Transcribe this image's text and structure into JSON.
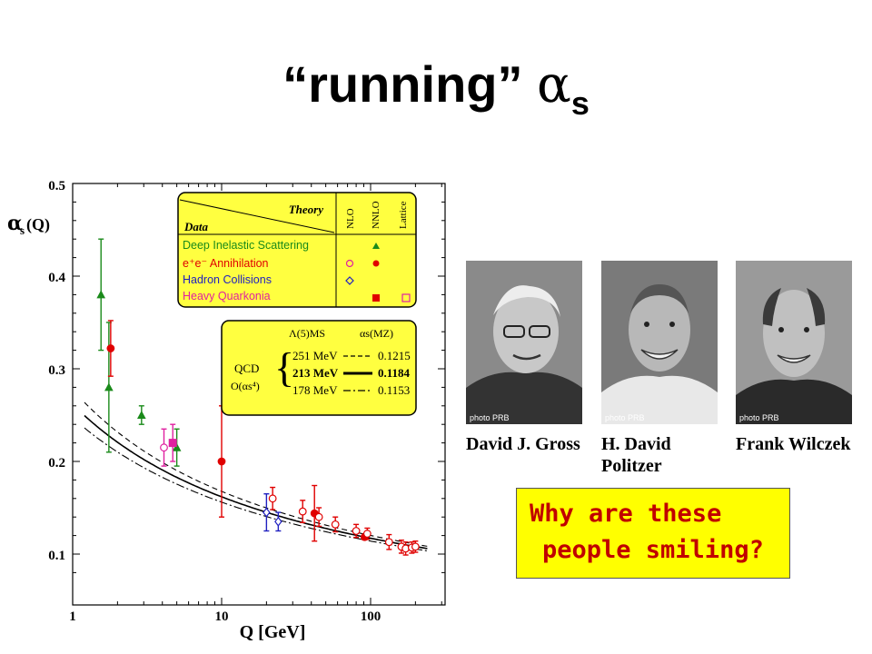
{
  "slide": {
    "title_text": "“running” ",
    "title_alpha": "α",
    "title_sub": "s"
  },
  "chart_data": {
    "type": "scatter",
    "title": "",
    "ylabel_main": "α",
    "ylabel_sub": "s",
    "ylabel_rest": "(Q)",
    "xlabel": "Q [GeV]",
    "xscale": "log",
    "xlim": [
      1,
      250
    ],
    "ylim": [
      0.07,
      0.5
    ],
    "x_ticks": [
      "1",
      "10",
      "100"
    ],
    "y_ticks": [
      "0.1",
      "0.2",
      "0.3",
      "0.4",
      "0.5"
    ],
    "legend_table": {
      "col_theory": "Theory",
      "col_data": "Data",
      "cols": [
        "NLO",
        "NNLO",
        "Lattice"
      ],
      "rows": [
        {
          "label": "Deep Inelastic Scattering",
          "color": "#1a8a1a"
        },
        {
          "label": "e⁺e⁻ Annihilation",
          "color": "#e00000"
        },
        {
          "label": "Hadron Collisions",
          "color": "#2020c0"
        },
        {
          "label": "Heavy Quarkonia",
          "color": "#e020a0"
        }
      ]
    },
    "qcd_box": {
      "header_lambda": "Λ(5)MS",
      "header_alpha": "αs(MZ)",
      "label1": "QCD",
      "label2": "O(αs⁴)",
      "rows": [
        {
          "lambda": "251 MeV",
          "alpha": "0.1215",
          "style": "dashed"
        },
        {
          "lambda": "213 MeV",
          "alpha": "0.1184",
          "style": "solid"
        },
        {
          "lambda": "178 MeV",
          "alpha": "0.1153",
          "style": "dashdot"
        }
      ]
    },
    "series": [
      {
        "name": "Deep Inelastic Scattering",
        "color": "#1a8a1a",
        "points": [
          {
            "x": 1.55,
            "y": 0.38,
            "err": 0.06,
            "m": "tri",
            "f": true
          },
          {
            "x": 1.75,
            "y": 0.28,
            "err": 0.07,
            "m": "tri",
            "f": true
          },
          {
            "x": 2.9,
            "y": 0.25,
            "err": 0.01,
            "m": "tri",
            "f": true
          },
          {
            "x": 5.0,
            "y": 0.215,
            "err": 0.02,
            "m": "tri",
            "f": true
          }
        ]
      },
      {
        "name": "e+e- Annihilation",
        "color": "#e00000",
        "points": [
          {
            "x": 1.8,
            "y": 0.322,
            "err": 0.03,
            "m": "circ",
            "f": true
          },
          {
            "x": 10.0,
            "y": 0.2,
            "err": 0.06,
            "m": "circ",
            "f": true
          },
          {
            "x": 42,
            "y": 0.144,
            "err": 0.03,
            "m": "circ",
            "f": true
          },
          {
            "x": 91.2,
            "y": 0.1184,
            "err": 0.003,
            "m": "circ",
            "f": true
          },
          {
            "x": 22,
            "y": 0.16,
            "err": 0.012,
            "m": "circ",
            "f": false
          },
          {
            "x": 35,
            "y": 0.146,
            "err": 0.012,
            "m": "circ",
            "f": false
          },
          {
            "x": 45,
            "y": 0.14,
            "err": 0.01,
            "m": "circ",
            "f": false
          },
          {
            "x": 58,
            "y": 0.132,
            "err": 0.008,
            "m": "circ",
            "f": false
          },
          {
            "x": 80,
            "y": 0.125,
            "err": 0.007,
            "m": "circ",
            "f": false
          },
          {
            "x": 95,
            "y": 0.122,
            "err": 0.006,
            "m": "circ",
            "f": false
          },
          {
            "x": 133,
            "y": 0.113,
            "err": 0.008,
            "m": "circ",
            "f": false
          },
          {
            "x": 161,
            "y": 0.108,
            "err": 0.007,
            "m": "circ",
            "f": false
          },
          {
            "x": 172,
            "y": 0.106,
            "err": 0.007,
            "m": "circ",
            "f": false
          },
          {
            "x": 189,
            "y": 0.107,
            "err": 0.006,
            "m": "circ",
            "f": false
          },
          {
            "x": 200,
            "y": 0.108,
            "err": 0.006,
            "m": "circ",
            "f": false
          }
        ]
      },
      {
        "name": "Hadron Collisions",
        "color": "#2020c0",
        "points": [
          {
            "x": 20,
            "y": 0.145,
            "err": 0.02,
            "m": "dia",
            "f": false
          },
          {
            "x": 24,
            "y": 0.135,
            "err": 0.01,
            "m": "dia",
            "f": false
          }
        ]
      },
      {
        "name": "Heavy Quarkonia",
        "color": "#e020a0",
        "points": [
          {
            "x": 4.1,
            "y": 0.215,
            "err": 0.02,
            "m": "circ",
            "f": false
          },
          {
            "x": 4.7,
            "y": 0.22,
            "err": 0.02,
            "m": "sq",
            "f": true
          }
        ]
      }
    ],
    "curves": [
      {
        "alpha_mz": 0.1215,
        "style": "dashed"
      },
      {
        "alpha_mz": 0.1184,
        "style": "solid"
      },
      {
        "alpha_mz": 0.1153,
        "style": "dashdot"
      }
    ]
  },
  "photos": [
    {
      "credit": "photo PRB",
      "name_lines": [
        "David J. Gross"
      ]
    },
    {
      "credit": "photo PRB",
      "name_lines": [
        "H. David",
        "Politzer"
      ]
    },
    {
      "credit": "photo PRB",
      "name_lines": [
        "Frank Wilczek"
      ]
    }
  ],
  "callout": {
    "line1": "Why are these",
    "line2": "people smiling?",
    "background": "#ffff00",
    "text_color": "#c00000"
  }
}
